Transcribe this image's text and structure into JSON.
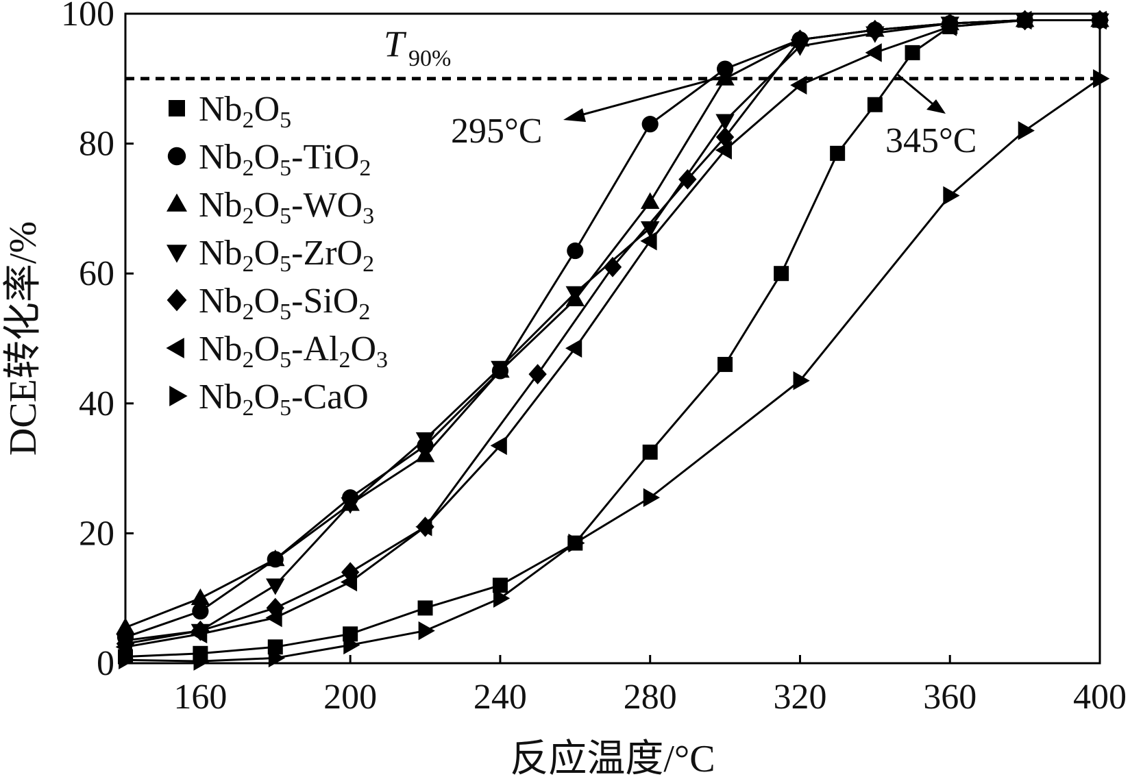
{
  "chart_data": {
    "type": "line",
    "xlabel": "反应温度/°C",
    "ylabel": "DCE转化率/%",
    "xlim": [
      140,
      400
    ],
    "ylim": [
      0,
      100
    ],
    "xticks": [
      160,
      200,
      240,
      280,
      320,
      360,
      400
    ],
    "yticks": [
      0,
      20,
      40,
      60,
      80,
      100
    ],
    "legend_position": "upper-left",
    "reference_line": {
      "y": 90,
      "style": "dashed",
      "label": "T90%"
    },
    "annotations": [
      {
        "text": "295°C",
        "x": 295,
        "y": 90
      },
      {
        "text": "345°C",
        "x": 345,
        "y": 90
      }
    ],
    "series": [
      {
        "name": "Nb2O5",
        "name_parts": [
          [
            "Nb",
            ""
          ],
          [
            "2",
            "sub"
          ],
          [
            "O",
            ""
          ],
          [
            "5",
            "sub"
          ]
        ],
        "marker": "square",
        "x": [
          140,
          160,
          180,
          200,
          220,
          240,
          260,
          280,
          300,
          315,
          330,
          340,
          350,
          360,
          380,
          400
        ],
        "y": [
          1,
          1.5,
          2.5,
          4.5,
          8.5,
          12,
          18.5,
          32.5,
          46,
          60,
          78.5,
          86,
          94,
          98,
          99,
          99
        ]
      },
      {
        "name": "Nb2O5-TiO2",
        "name_parts": [
          [
            "Nb",
            ""
          ],
          [
            "2",
            "sub"
          ],
          [
            "O",
            ""
          ],
          [
            "5",
            "sub"
          ],
          [
            "-TiO",
            ""
          ],
          [
            "2",
            "sub"
          ]
        ],
        "marker": "circle",
        "x": [
          140,
          160,
          180,
          200,
          220,
          240,
          260,
          280,
          300,
          320,
          340,
          360,
          380,
          400
        ],
        "y": [
          4,
          8,
          16,
          25.5,
          33.5,
          45,
          63.5,
          83,
          91.5,
          96,
          97.5,
          98.5,
          99,
          99
        ]
      },
      {
        "name": "Nb2O5-WO3",
        "name_parts": [
          [
            "Nb",
            ""
          ],
          [
            "2",
            "sub"
          ],
          [
            "O",
            ""
          ],
          [
            "5",
            "sub"
          ],
          [
            "-WO",
            ""
          ],
          [
            "3",
            "sub"
          ]
        ],
        "marker": "triangle-up",
        "x": [
          140,
          160,
          180,
          200,
          220,
          240,
          260,
          280,
          300,
          320,
          340,
          360,
          380,
          400
        ],
        "y": [
          5.5,
          10,
          16,
          24.5,
          32,
          45,
          56,
          71,
          90,
          96,
          97.5,
          98.5,
          99,
          99
        ]
      },
      {
        "name": "Nb2O5-ZrO2",
        "name_parts": [
          [
            "Nb",
            ""
          ],
          [
            "2",
            "sub"
          ],
          [
            "O",
            ""
          ],
          [
            "5",
            "sub"
          ],
          [
            "-ZrO",
            ""
          ],
          [
            "2",
            "sub"
          ]
        ],
        "marker": "triangle-down",
        "x": [
          140,
          160,
          180,
          200,
          220,
          240,
          260,
          280,
          300,
          320,
          340,
          360,
          380,
          400
        ],
        "y": [
          3.5,
          5,
          12,
          24.5,
          34.5,
          45.5,
          57,
          67,
          83.5,
          95,
          97,
          98.5,
          99,
          99
        ]
      },
      {
        "name": "Nb2O5-SiO2",
        "name_parts": [
          [
            "Nb",
            ""
          ],
          [
            "2",
            "sub"
          ],
          [
            "O",
            ""
          ],
          [
            "5",
            "sub"
          ],
          [
            "-SiO",
            ""
          ],
          [
            "2",
            "sub"
          ]
        ],
        "marker": "diamond",
        "x": [
          140,
          160,
          180,
          200,
          220,
          250,
          270,
          290,
          300,
          320,
          340,
          360,
          380,
          400
        ],
        "y": [
          3,
          5,
          8.5,
          14,
          21,
          44.5,
          61,
          74.5,
          81,
          96,
          97.5,
          98.5,
          99,
          99
        ]
      },
      {
        "name": "Nb2O5-Al2O3",
        "name_parts": [
          [
            "Nb",
            ""
          ],
          [
            "2",
            "sub"
          ],
          [
            "O",
            ""
          ],
          [
            "5",
            "sub"
          ],
          [
            "-Al",
            ""
          ],
          [
            "2",
            "sub"
          ],
          [
            "O",
            ""
          ],
          [
            "3",
            "sub"
          ]
        ],
        "marker": "triangle-left",
        "x": [
          140,
          160,
          180,
          200,
          220,
          240,
          260,
          280,
          300,
          320,
          340,
          360,
          380,
          400
        ],
        "y": [
          2.5,
          4.5,
          7,
          12.5,
          21,
          33.5,
          48.5,
          65,
          79,
          89,
          94,
          98,
          99,
          99
        ]
      },
      {
        "name": "Nb2O5-CaO",
        "name_parts": [
          [
            "Nb",
            ""
          ],
          [
            "2",
            "sub"
          ],
          [
            "O",
            ""
          ],
          [
            "5",
            "sub"
          ],
          [
            "-CaO",
            ""
          ]
        ],
        "marker": "triangle-right",
        "x": [
          140,
          160,
          180,
          200,
          220,
          240,
          260,
          280,
          320,
          360,
          380,
          400
        ],
        "y": [
          0.5,
          0.3,
          0.8,
          2.8,
          5,
          10,
          18.5,
          25.5,
          43.5,
          72,
          82,
          90
        ]
      }
    ]
  }
}
